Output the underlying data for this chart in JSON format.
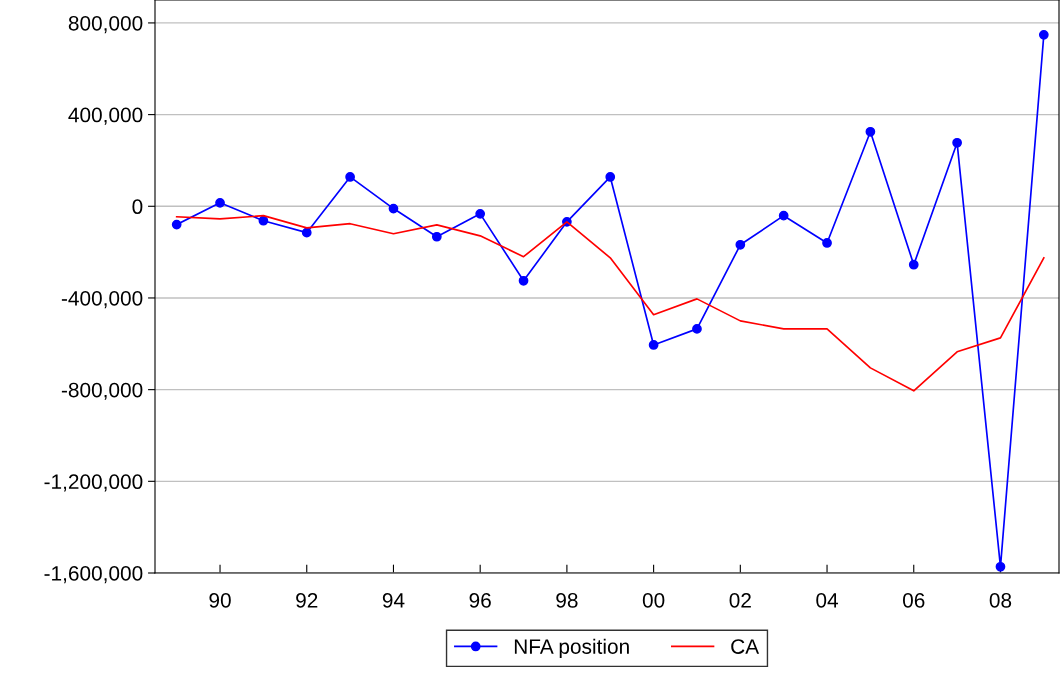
{
  "chart_data": {
    "type": "line",
    "x": [
      1989,
      1990,
      1991,
      1992,
      1993,
      1994,
      1995,
      1996,
      1997,
      1998,
      1999,
      2000,
      2001,
      2002,
      2003,
      2004,
      2005,
      2006,
      2007,
      2008,
      2009
    ],
    "series": [
      {
        "name": "NFA position",
        "color": "#0000ff",
        "marker": "circle",
        "values": [
          -80000,
          15000,
          -63000,
          -115000,
          128000,
          -10000,
          -133000,
          -33000,
          -325000,
          -68000,
          128000,
          -605000,
          -535000,
          -168000,
          -41000,
          -160000,
          325000,
          -255000,
          277000,
          -1573000,
          748000
        ]
      },
      {
        "name": "CA",
        "color": "#ff0000",
        "marker": "none",
        "values": [
          -46000,
          -55000,
          -41000,
          -94000,
          -76000,
          -120000,
          -81000,
          -129000,
          -220000,
          -68000,
          -225000,
          -473000,
          -404000,
          -500000,
          -535000,
          -535000,
          -705000,
          -805000,
          -635000,
          -574000,
          -225000
        ]
      }
    ],
    "xlim": [
      1988.5,
      2009.35
    ],
    "xticks": [
      {
        "value": 1990,
        "label": "90"
      },
      {
        "value": 1992,
        "label": "92"
      },
      {
        "value": 1994,
        "label": "94"
      },
      {
        "value": 1996,
        "label": "96"
      },
      {
        "value": 1998,
        "label": "98"
      },
      {
        "value": 2000,
        "label": "00"
      },
      {
        "value": 2002,
        "label": "02"
      },
      {
        "value": 2004,
        "label": "04"
      },
      {
        "value": 2006,
        "label": "06"
      },
      {
        "value": 2008,
        "label": "08"
      }
    ],
    "ylim": [
      -1600000,
      900000
    ],
    "yticks": [
      {
        "value": -1600000,
        "label": "-1,600,000"
      },
      {
        "value": -1200000,
        "label": "-1,200,000"
      },
      {
        "value": -800000,
        "label": "-800,000"
      },
      {
        "value": -400000,
        "label": "-400,000"
      },
      {
        "value": 0,
        "label": "0"
      },
      {
        "value": 400000,
        "label": "400,000"
      },
      {
        "value": 800000,
        "label": "800,000"
      }
    ],
    "grid": "y",
    "legend": "bottom",
    "line_style": "solid"
  }
}
